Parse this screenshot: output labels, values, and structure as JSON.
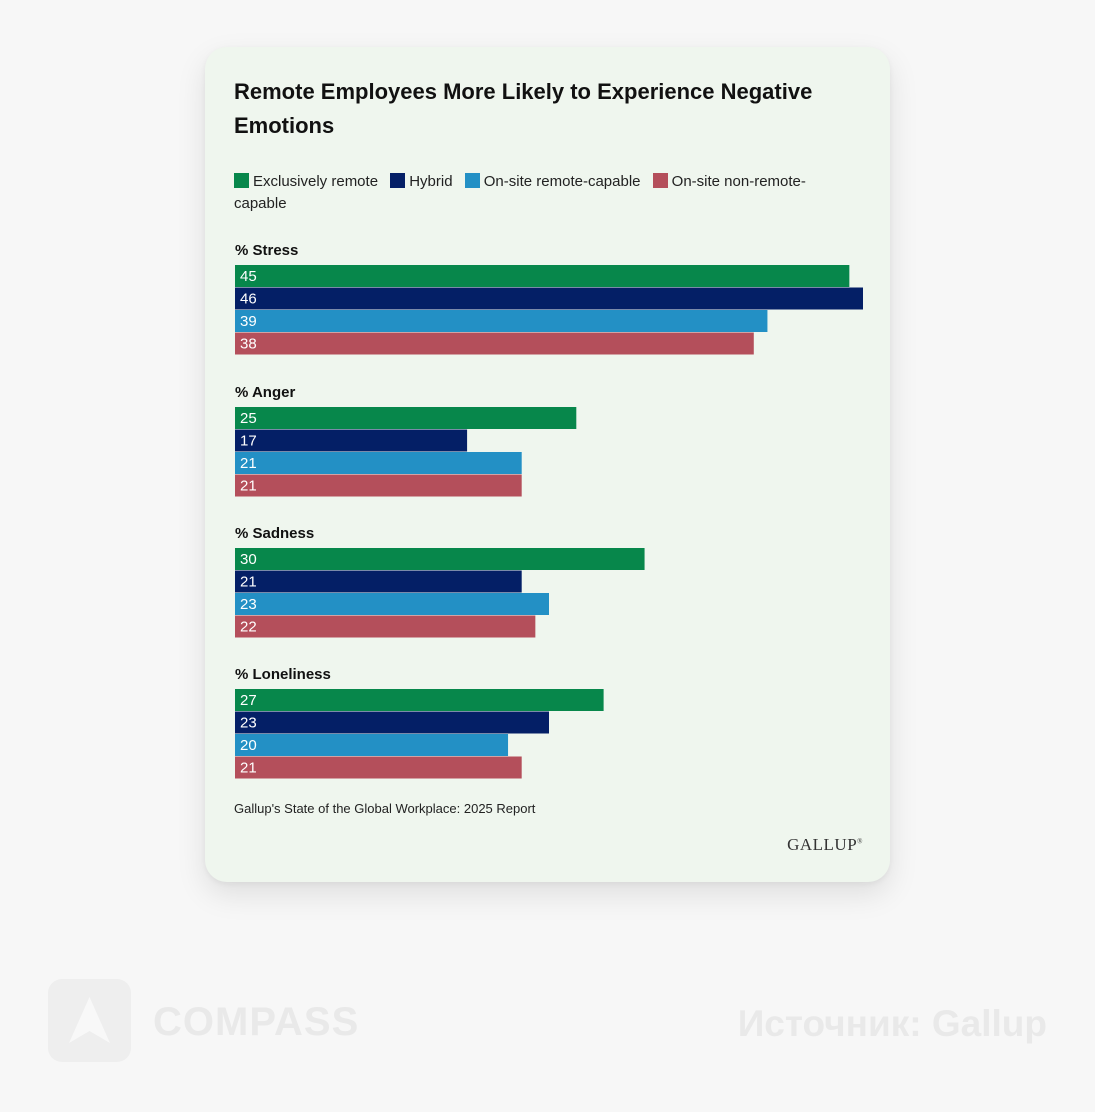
{
  "colors": {
    "exclusively_remote": "#07874b",
    "hybrid": "#041f66",
    "onsite_remote_capable": "#2390c5",
    "onsite_non_remote_capable": "#b44f5b"
  },
  "source_note": "Gallup's State of the Global Workplace: 2025 Report",
  "logo": "GALLUP",
  "watermark": {
    "brand": "COMPASS",
    "source": "Источник: Gallup",
    "icon": "compass-arrow-icon"
  },
  "chart_data": {
    "type": "bar",
    "orientation": "horizontal",
    "title": "Remote Employees More Likely to Experience Negative Emotions",
    "legend_position": "top",
    "groups": [
      "% Stress",
      "% Anger",
      "% Sadness",
      "% Loneliness"
    ],
    "series": [
      {
        "name": "Exclusively remote",
        "color": "#07874b",
        "values": [
          45,
          25,
          30,
          27
        ]
      },
      {
        "name": "Hybrid",
        "color": "#041f66",
        "values": [
          46,
          17,
          21,
          23
        ]
      },
      {
        "name": "On-site remote-capable",
        "color": "#2390c5",
        "values": [
          39,
          21,
          23,
          20
        ]
      },
      {
        "name": "On-site non-remote-capable",
        "color": "#b44f5b",
        "values": [
          38,
          21,
          22,
          21
        ]
      }
    ],
    "xlim": [
      0,
      46
    ],
    "grid": false,
    "data_labels": "inside-left"
  }
}
